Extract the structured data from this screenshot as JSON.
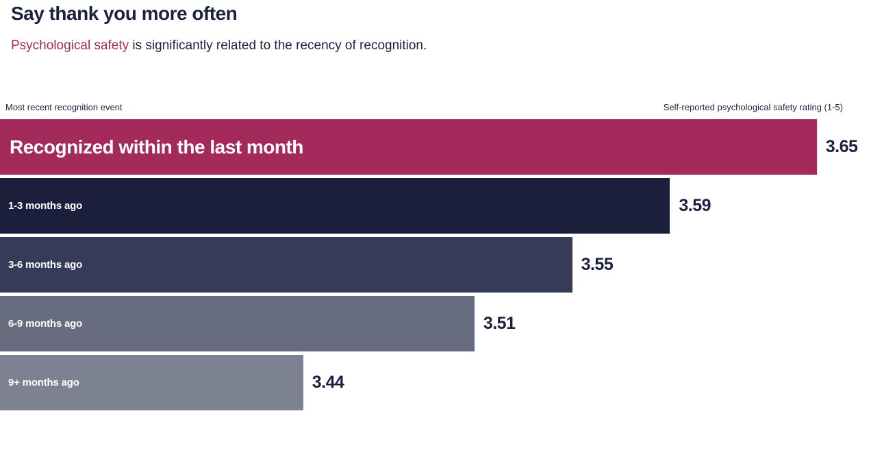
{
  "page": {
    "title": "Say thank you more often",
    "subtitle_highlight": "Psychological safety",
    "subtitle_rest": " is significantly related to the recency of recognition.",
    "background": "#ffffff"
  },
  "colors": {
    "text_dark": "#1a2240",
    "accent_crimson": "#a32a5a",
    "bar_navy": "#1b1f3b",
    "bar_slate": "#363b58",
    "bar_gray": "#676c7e",
    "bar_light_gray": "#7d8292"
  },
  "chart_data": {
    "type": "bar",
    "orientation": "horizontal",
    "title": "Say thank you more often",
    "subtitle": "Psychological safety is significantly related to the recency of recognition.",
    "left_header": "Most recent recognition event",
    "right_header": "Self-reported psychological safety rating (1-5)",
    "xlabel": "Self-reported psychological safety rating (1-5)",
    "ylabel": "Most recent recognition event",
    "xlim": [
      3.316,
      3.682
    ],
    "grid": false,
    "legend": "none",
    "value_labels_shown": true,
    "categories": [
      "Recognized within the last month",
      "1-3 months ago",
      "3-6 months ago",
      "6-9 months ago",
      "9+ months ago"
    ],
    "values": [
      3.65,
      3.59,
      3.55,
      3.51,
      3.44
    ],
    "rows": [
      {
        "label": "Recognized within the last month",
        "value": 3.65,
        "color": "#a32a5a",
        "emphasis": true
      },
      {
        "label": "1-3 months ago",
        "value": 3.59,
        "color": "#1b1f3b",
        "emphasis": false
      },
      {
        "label": "3-6 months ago",
        "value": 3.55,
        "color": "#363b58",
        "emphasis": false
      },
      {
        "label": "6-9 months ago",
        "value": 3.51,
        "color": "#676c7e",
        "emphasis": false
      },
      {
        "label": "9+ months ago",
        "value": 3.44,
        "color": "#7d8292",
        "emphasis": false
      }
    ]
  }
}
